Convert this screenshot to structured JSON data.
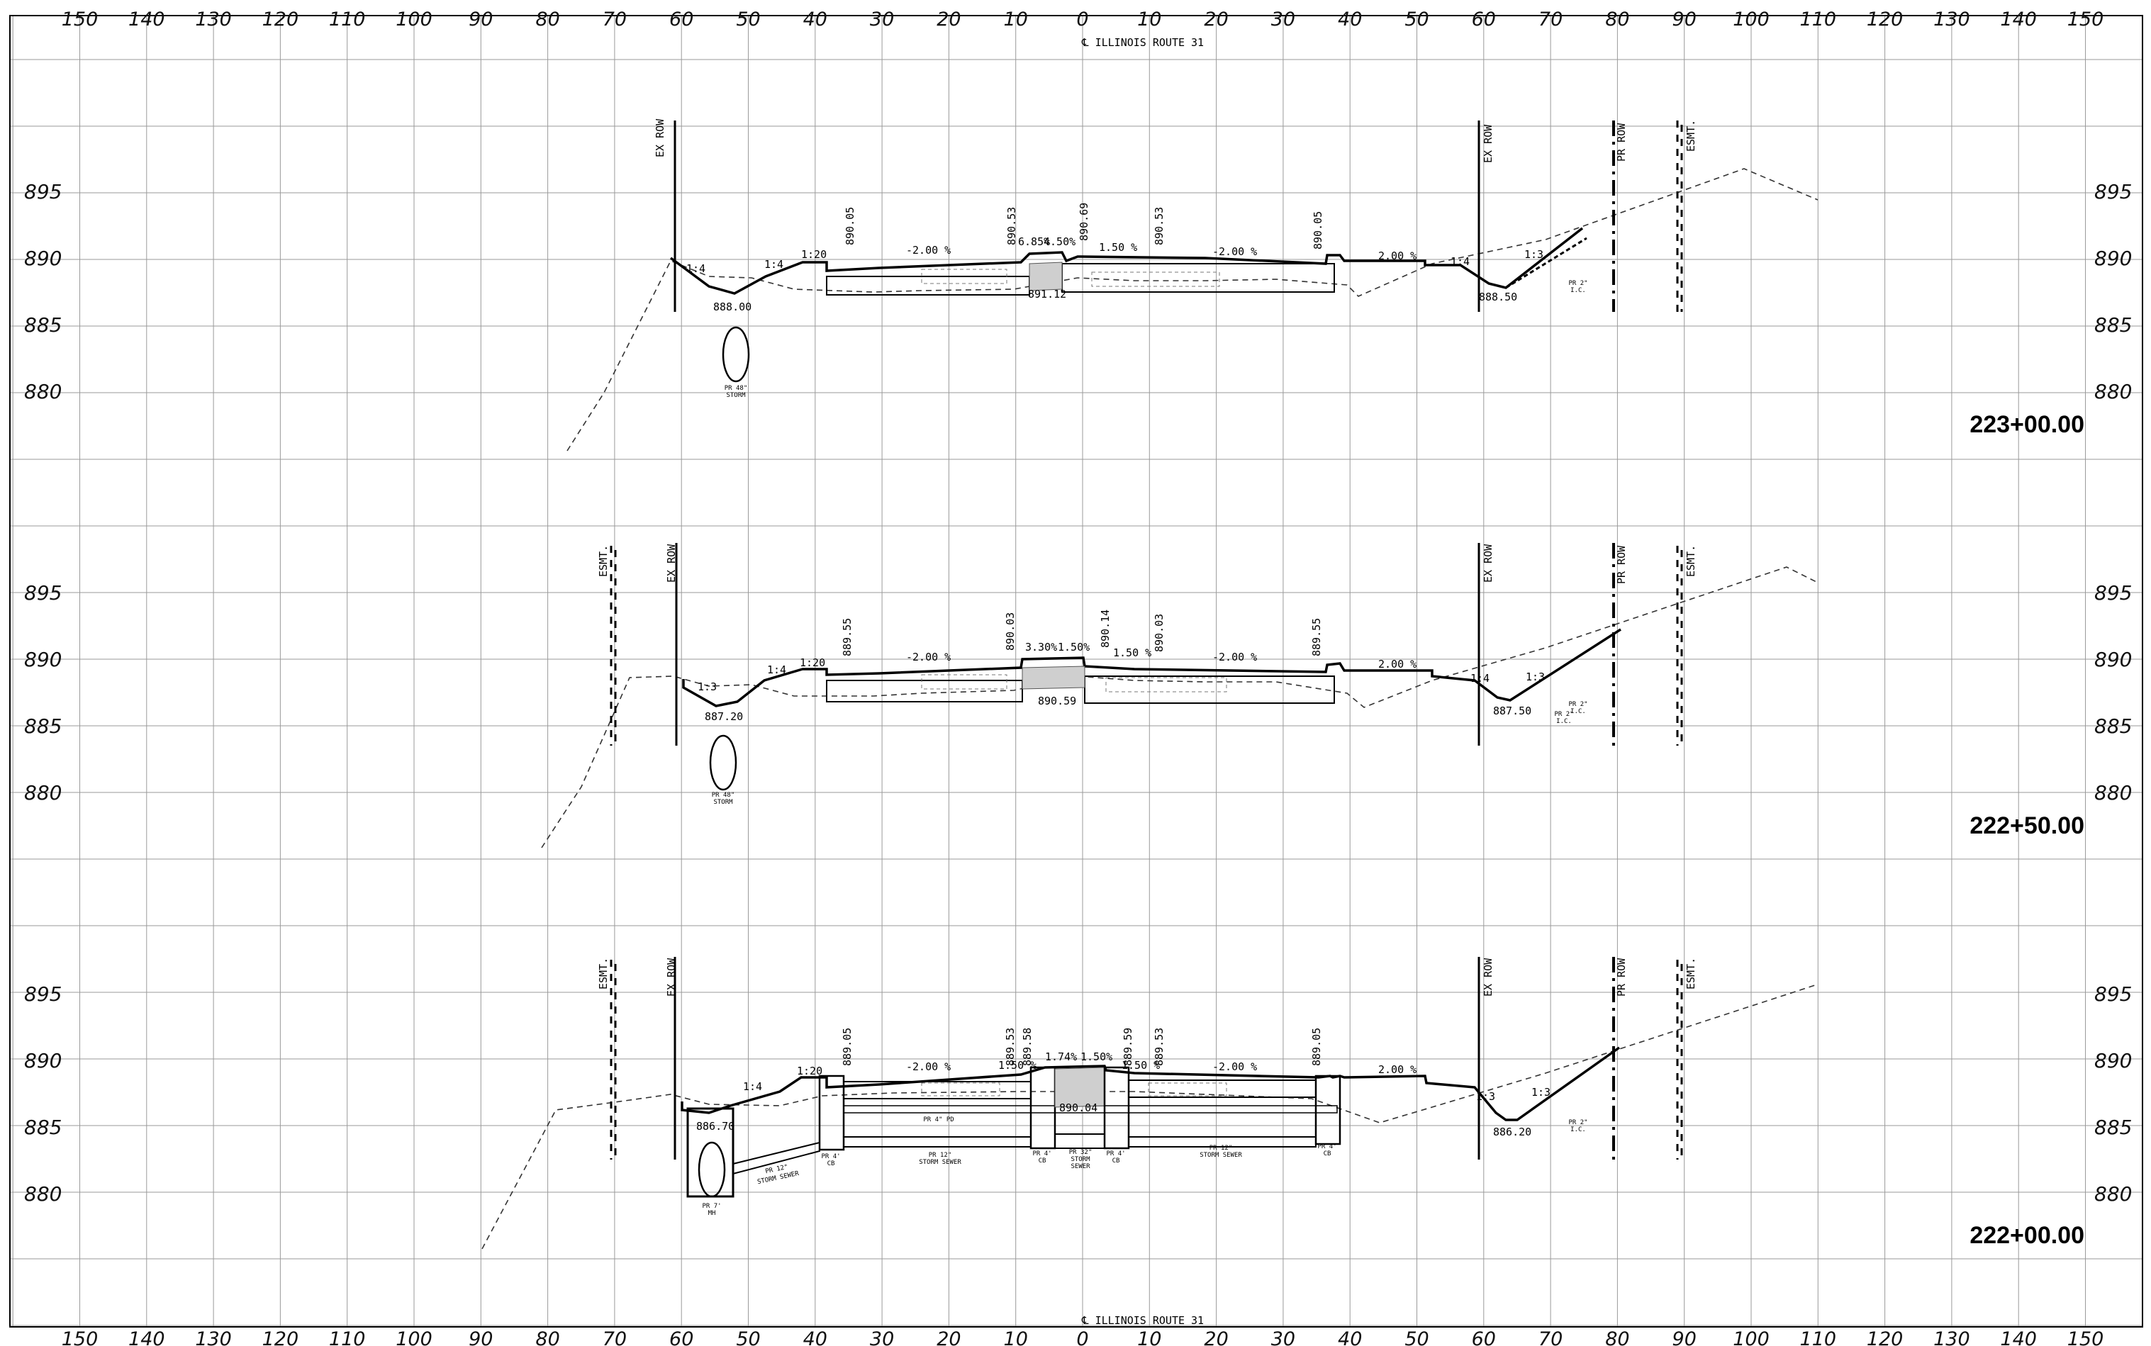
{
  "top_axis_labels": [
    "150",
    "140",
    "130",
    "120",
    "110",
    "100",
    "90",
    "80",
    "70",
    "60",
    "50",
    "40",
    "30",
    "20",
    "10",
    "0",
    "10",
    "20",
    "30",
    "40",
    "50",
    "60",
    "70",
    "80",
    "90",
    "100",
    "110",
    "120",
    "130",
    "140",
    "150"
  ],
  "centerline_label": "℄ ILLINOIS ROUTE 31",
  "sections": [
    {
      "station": "223+00.00",
      "elevations": [
        "895",
        "890",
        "885",
        "880"
      ],
      "row_left": "EX ROW",
      "row_right_ex": "EX ROW",
      "row_right_pr": "PR ROW",
      "esmt_right": "ESMT.",
      "esmt_left": "",
      "slope_labels": [
        "1:4",
        "1:4",
        "1:20",
        "1:4",
        "1:3"
      ],
      "grades": [
        "-2.00 %",
        "6.85%",
        "4.50%",
        "1.50 %",
        "-2.00 %",
        "2.00 %"
      ],
      "spot_elevs_v": [
        "890.05",
        "890.53",
        "890.69",
        "890.53",
        "890.05"
      ],
      "spot_elevs_h": [
        "888.00",
        "891.12",
        "888.50"
      ],
      "storm_label": [
        "PR 48\"",
        "STORM"
      ],
      "ic_label": [
        "PR 2\"",
        "I.C."
      ]
    },
    {
      "station": "222+50.00",
      "elevations": [
        "895",
        "890",
        "885",
        "880"
      ],
      "row_left": "EX ROW",
      "row_right_ex": "EX ROW",
      "row_right_pr": "PR ROW",
      "esmt_right": "ESMT.",
      "esmt_left": "ESMT.",
      "slope_labels": [
        "1:3",
        "1:4",
        "1:20",
        "1:4",
        "1:3"
      ],
      "grades": [
        "-2.00 %",
        "3.30%",
        "1.50%",
        "1.50 %",
        "-2.00 %",
        "2.00 %"
      ],
      "spot_elevs_v": [
        "889.55",
        "890.03",
        "890.14",
        "890.03",
        "889.55"
      ],
      "spot_elevs_h": [
        "887.20",
        "890.59",
        "887.50"
      ],
      "storm_label": [
        "PR 48\"",
        "STORM"
      ],
      "ic_label": [
        "PR 2\"",
        "I.C.",
        "PR 2\"",
        "I.C."
      ]
    },
    {
      "station": "222+00.00",
      "elevations": [
        "895",
        "890",
        "885",
        "880"
      ],
      "row_left": "EX ROW",
      "row_right_ex": "EX ROW",
      "row_right_pr": "PR ROW",
      "esmt_right": "ESMT.",
      "esmt_left": "ESMT.",
      "slope_labels": [
        "1:4",
        "1:20",
        "1:3",
        "1:3"
      ],
      "grades": [
        "-2.00 %",
        "1.50 %",
        "1.74%",
        "1.50%",
        "1.50 %",
        "-2.00 %",
        "2.00 %"
      ],
      "spot_elevs_v": [
        "889.05",
        "889.53",
        "889.58",
        "889.59",
        "889.53",
        "889.05"
      ],
      "spot_elevs_h": [
        "886.70",
        "890.04",
        "886.20"
      ],
      "mh_label": [
        "PR 7'",
        "MH"
      ],
      "storm_sewer_12": [
        "PR 12\"",
        "STORM SEWER"
      ],
      "cb_label": [
        "PR 4'",
        "CB"
      ],
      "pd_label": "PR 4\" PD",
      "storm_sewer_32": [
        "PR 32\"",
        "STORM",
        "SEWER"
      ],
      "ic_label": [
        "PR 2\"",
        "I.C."
      ]
    }
  ]
}
